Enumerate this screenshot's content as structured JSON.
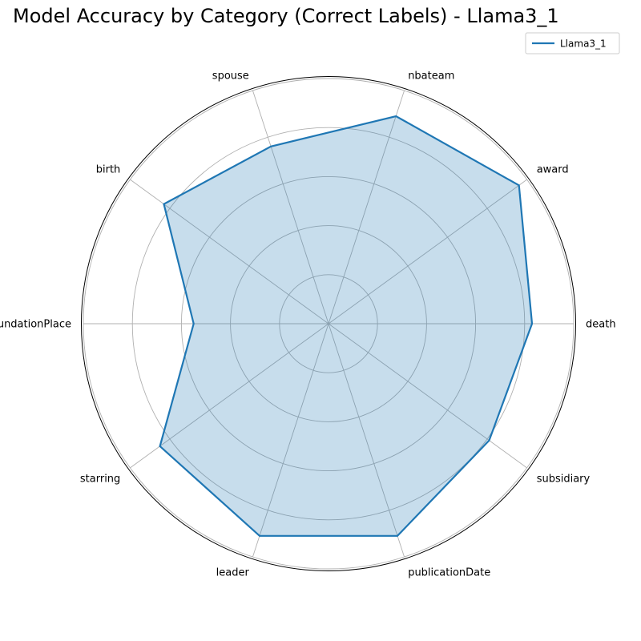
{
  "chart_data": {
    "type": "radar",
    "title": "Model Accuracy by Category (Correct Labels) - Llama3_1",
    "categories": [
      "death",
      "award",
      "nbateam",
      "spouse",
      "birth",
      "foundationPlace",
      "starring",
      "leader",
      "publicationDate",
      "subsidiary"
    ],
    "rlim": [
      0,
      1
    ],
    "r_gridlines": [
      0.2,
      0.4,
      0.6,
      0.8,
      1.0
    ],
    "grid": true,
    "series": [
      {
        "name": "Llama3_1",
        "values": [
          0.83,
          0.96,
          0.89,
          0.76,
          0.83,
          0.55,
          0.85,
          0.91,
          0.91,
          0.81
        ],
        "color": "#1f77b4",
        "fill": "#1f77b4"
      }
    ],
    "legend": {
      "position": "upper-right"
    }
  }
}
